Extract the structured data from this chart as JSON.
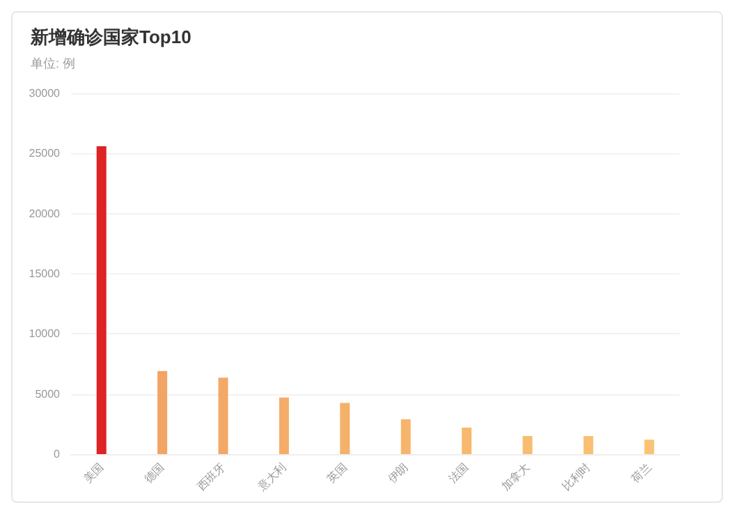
{
  "chart_data": {
    "type": "bar",
    "title": "新增确诊国家Top10",
    "subtitle": "单位: 例",
    "categories": [
      "美国",
      "德国",
      "西班牙",
      "意大利",
      "英国",
      "伊朗",
      "法国",
      "加拿大",
      "比利时",
      "荷兰"
    ],
    "values": [
      25600,
      6900,
      6350,
      4700,
      4250,
      2900,
      2200,
      1500,
      1500,
      1200
    ],
    "colors": [
      "#dd2323",
      "#f2a464",
      "#f3a866",
      "#f4ad68",
      "#f5b16a",
      "#f6b56c",
      "#f7b96e",
      "#f8bd70",
      "#f9c072",
      "#fac374"
    ],
    "ylim": [
      0,
      30000
    ],
    "yticks": [
      0,
      5000,
      10000,
      15000,
      20000,
      25000,
      30000
    ],
    "grid": "y"
  }
}
